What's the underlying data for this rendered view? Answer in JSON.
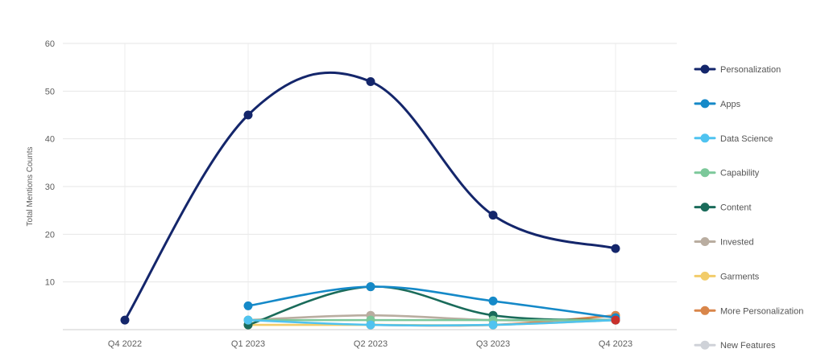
{
  "chart_data": {
    "type": "line",
    "title": "",
    "xlabel": "",
    "ylabel": "Total Mentions Counts",
    "ylim": [
      0,
      60
    ],
    "yticks": [
      10,
      20,
      30,
      40,
      50,
      60
    ],
    "categories": [
      "Q4 2022",
      "Q1 2023",
      "Q2 2023",
      "Q3 2023",
      "Q4 2023"
    ],
    "grid": true,
    "legend_position": "right",
    "smooth": true,
    "series": [
      {
        "name": "Personalization",
        "color": "#14266b",
        "values": [
          2,
          45,
          52,
          24,
          17
        ]
      },
      {
        "name": "Apps",
        "color": "#1589c8",
        "values": [
          null,
          5,
          9,
          6,
          2.5
        ]
      },
      {
        "name": "Data Science",
        "color": "#4fc3f0",
        "values": [
          null,
          2,
          1,
          1,
          2
        ]
      },
      {
        "name": "Capability",
        "color": "#7cc89a",
        "values": [
          null,
          2,
          2,
          2,
          2
        ]
      },
      {
        "name": "Content",
        "color": "#1a6b5a",
        "values": [
          null,
          1,
          9,
          3,
          2
        ]
      },
      {
        "name": "Invested",
        "color": "#b9ada0",
        "values": [
          null,
          2,
          3,
          2,
          2
        ]
      },
      {
        "name": "Garments",
        "color": "#f2cc6a",
        "values": [
          null,
          1,
          1,
          1,
          2
        ]
      },
      {
        "name": "More Personalization",
        "color": "#d9864a",
        "values": [
          null,
          null,
          1,
          1,
          3
        ]
      },
      {
        "name": "New Features",
        "color": "#cfd2d8",
        "values": [
          null,
          null,
          null,
          2,
          2
        ]
      }
    ],
    "extra_marker": {
      "color": "#c9302c",
      "category": "Q4 2023",
      "value": 2
    }
  }
}
